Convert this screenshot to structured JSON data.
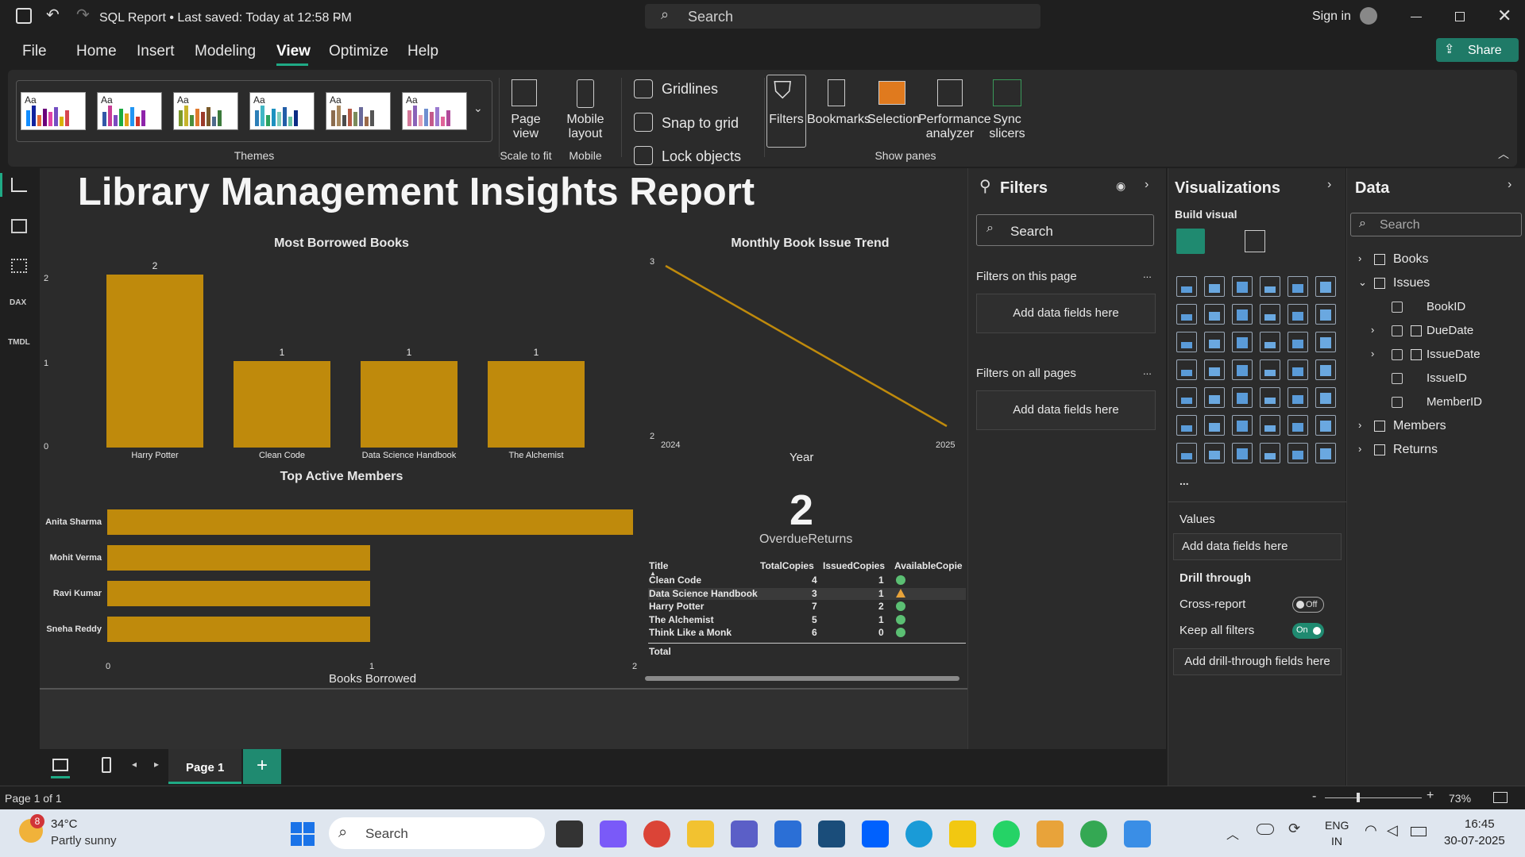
{
  "titlebar": {
    "title": "SQL Report • Last saved: Today at 12:58 PM",
    "search_placeholder": "Search",
    "sign_in": "Sign in",
    "share": "Share"
  },
  "menu": [
    "File",
    "Home",
    "Insert",
    "Modeling",
    "View",
    "Optimize",
    "Help"
  ],
  "ribbon": {
    "themes_label": "Themes",
    "theme_aa": "Aa",
    "page_view": "Page view",
    "scale_to_fit": "Scale to fit",
    "mobile_layout": "Mobile layout",
    "mobile": "Mobile",
    "gridlines": "Gridlines",
    "snap_to_grid": "Snap to grid",
    "lock_objects": "Lock objects",
    "filters": "Filters",
    "bookmarks": "Bookmarks",
    "selection": "Selection",
    "performance": "Performance analyzer",
    "sync": "Sync slicers",
    "show_panes": "Show panes"
  },
  "report": {
    "title": "Library Management Insights Report",
    "books_chart": {
      "title": "Most Borrowed Books",
      "type": "bar",
      "y_ticks": [
        "2",
        "1",
        "0"
      ]
    },
    "trend_chart": {
      "title": "Monthly Book Issue Trend",
      "xlabel": "Year",
      "x_ticks": [
        "2024",
        "2025"
      ],
      "y_ticks": [
        "3",
        "2"
      ]
    },
    "members_chart": {
      "title": "Top Active Members",
      "xlabel": "Books Borrowed",
      "x_ticks": [
        "0",
        "1",
        "2"
      ]
    },
    "card": {
      "value": "2",
      "label": "OverdueReturns"
    },
    "table": {
      "headers": [
        "Title",
        "TotalCopies",
        "IssuedCopies",
        "AvailableCopie"
      ],
      "rows": [
        {
          "title": "Clean Code",
          "total": "4",
          "issued": "1",
          "status": "green"
        },
        {
          "title": "Data Science Handbook",
          "total": "3",
          "issued": "1",
          "status": "amber"
        },
        {
          "title": "Harry Potter",
          "total": "7",
          "issued": "2",
          "status": "green"
        },
        {
          "title": "The Alchemist",
          "total": "5",
          "issued": "1",
          "status": "green"
        },
        {
          "title": "Think Like a Monk",
          "total": "6",
          "issued": "0",
          "status": "green"
        }
      ],
      "total_label": "Total"
    }
  },
  "chart_data": [
    {
      "type": "bar",
      "title": "Most Borrowed Books",
      "categories": [
        "Harry Potter",
        "Clean Code",
        "Data Science Handbook",
        "The Alchemist"
      ],
      "values": [
        2,
        1,
        1,
        1
      ],
      "ylim": [
        0,
        2
      ]
    },
    {
      "type": "line",
      "title": "Monthly Book Issue Trend",
      "xlabel": "Year",
      "x": [
        "2024",
        "2025"
      ],
      "values": [
        3,
        2
      ],
      "ylim": [
        2,
        3
      ]
    },
    {
      "type": "bar",
      "orientation": "horizontal",
      "title": "Top Active Members",
      "xlabel": "Books Borrowed",
      "categories": [
        "Anita Sharma",
        "Mohit Verma",
        "Ravi Kumar",
        "Sneha Reddy"
      ],
      "values": [
        2,
        1,
        1,
        1
      ],
      "xlim": [
        0,
        2
      ]
    }
  ],
  "filters": {
    "title": "Filters",
    "search": "Search",
    "on_page": "Filters on this page",
    "on_all": "Filters on all pages",
    "add": "Add data fields here",
    "more": "..."
  },
  "viz": {
    "title": "Visualizations",
    "build": "Build visual",
    "values": "Values",
    "add": "Add data fields here",
    "drill": "Drill through",
    "cross": "Cross-report",
    "cross_state": "Off",
    "keep": "Keep all filters",
    "keep_state": "On",
    "add_drill": "Add drill-through fields here",
    "more": "..."
  },
  "data": {
    "title": "Data",
    "search": "Search",
    "tables": [
      "Books",
      "Issues",
      "Members",
      "Returns"
    ],
    "fields": [
      "BookID",
      "DueDate",
      "IssueDate",
      "IssueID",
      "MemberID"
    ]
  },
  "pages": {
    "page1": "Page 1",
    "status": "Page 1 of 1",
    "zoom": "73%"
  },
  "taskbar": {
    "temp": "34°C",
    "weather": "Partly sunny",
    "badge": "8",
    "search": "Search",
    "lang1": "ENG",
    "lang2": "IN",
    "time": "16:45",
    "date": "30-07-2025"
  },
  "colors": {
    "accent": "#bf8a0c",
    "teal": "#1f8a70"
  }
}
